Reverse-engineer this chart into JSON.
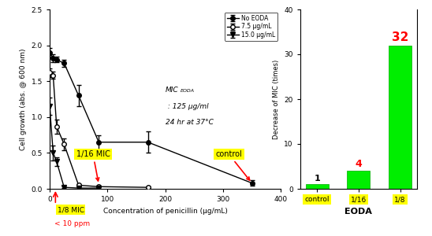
{
  "left": {
    "no_eoda_x": [
      0,
      6,
      12,
      25,
      50,
      85,
      170,
      350
    ],
    "no_eoda_y": [
      1.9,
      1.82,
      1.8,
      1.75,
      1.3,
      0.65,
      0.65,
      0.08
    ],
    "no_eoda_yerr": [
      0.06,
      0.05,
      0.04,
      0.05,
      0.15,
      0.1,
      0.15,
      0.04
    ],
    "eoda75_x": [
      0,
      6,
      12,
      25,
      50,
      85,
      170
    ],
    "eoda75_y": [
      1.62,
      1.58,
      0.87,
      0.62,
      0.05,
      0.03,
      0.02
    ],
    "eoda75_yerr": [
      0.06,
      0.05,
      0.1,
      0.08,
      0.02,
      0.01,
      0.01
    ],
    "eoda150_x": [
      0,
      6,
      12,
      25,
      50,
      85
    ],
    "eoda150_y": [
      1.15,
      0.5,
      0.38,
      0.02,
      0.01,
      0.01
    ],
    "eoda150_yerr": [
      0.12,
      0.1,
      0.06,
      0.01,
      0.01,
      0.01
    ],
    "xlabel": "Concentration of penicillin (μg/mL)",
    "ylabel": "Cell growth (abs. @ 600 nm)",
    "xlim": [
      0,
      400
    ],
    "ylim": [
      0,
      2.5
    ],
    "xticks": [
      0,
      100,
      200,
      300,
      400
    ],
    "yticks": [
      0.0,
      0.5,
      1.0,
      1.5,
      2.0,
      2.5
    ],
    "legend_labels": [
      "No EODA",
      "7.5 μg/mL",
      "15.0 μg/mL"
    ],
    "mic_annotation": "MIC",
    "mic_sub": "EODA",
    "mic_rest": " : 125 μg/ml\n24 hr at 37°C"
  },
  "right": {
    "categories": [
      "control",
      "1/16",
      "1/8"
    ],
    "values": [
      1,
      4,
      32
    ],
    "bar_color": "#00ee00",
    "ylabel": "Decrease of MIC (times)",
    "xlabel": "EODA",
    "ylim": [
      0,
      40
    ],
    "yticks": [
      0,
      10,
      20,
      30,
      40
    ],
    "value_colors": [
      "black",
      "red",
      "red"
    ],
    "value_fontsize": [
      8,
      9,
      11
    ]
  }
}
